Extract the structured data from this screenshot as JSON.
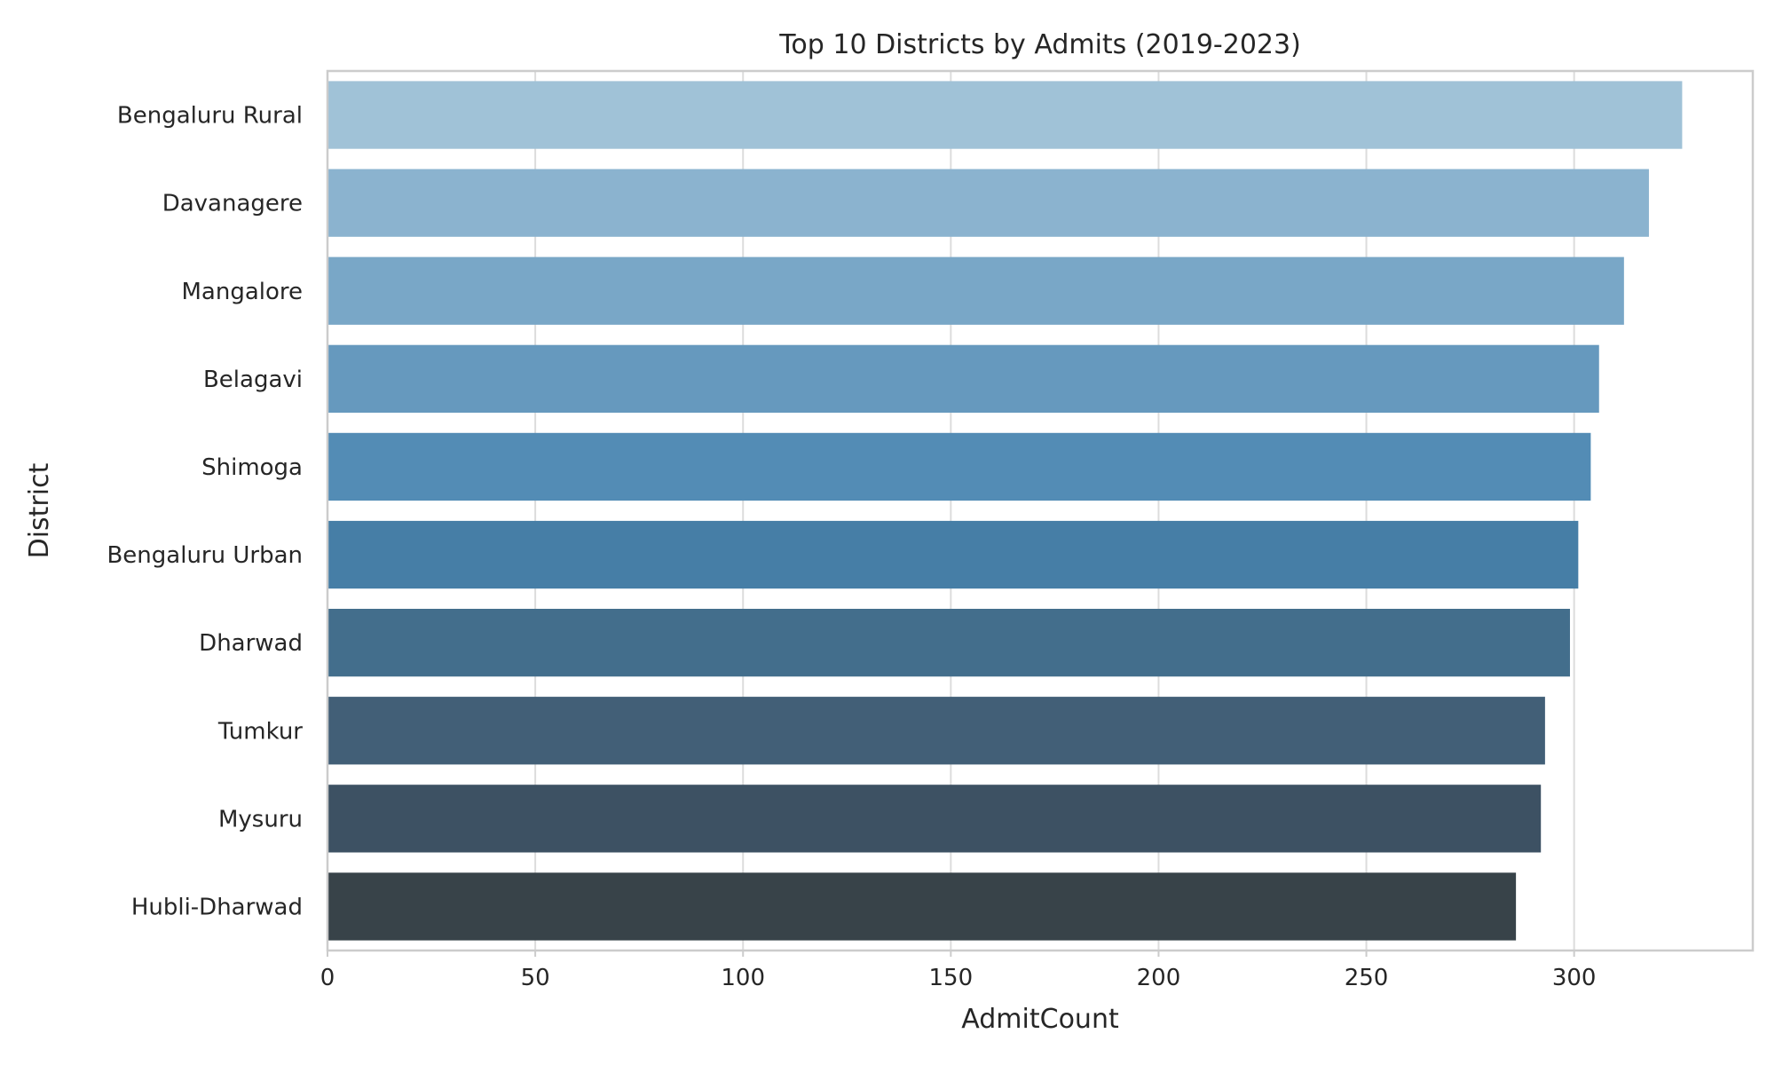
{
  "chart_data": {
    "type": "bar",
    "orientation": "horizontal",
    "title": "Top 10 Districts by Admits (2019-2023)",
    "xlabel": "AdmitCount",
    "ylabel": "District",
    "categories": [
      "Bengaluru Rural",
      "Davanagere",
      "Mangalore",
      "Belagavi",
      "Shimoga",
      "Bengaluru Urban",
      "Dharwad",
      "Tumkur",
      "Mysuru",
      "Hubli-Dharwad"
    ],
    "values": [
      326,
      318,
      312,
      306,
      304,
      301,
      299,
      293,
      292,
      286
    ],
    "xlim": [
      0,
      343
    ],
    "xticks": [
      0,
      50,
      100,
      150,
      200,
      250,
      300
    ],
    "xtick_labels": [
      "0",
      "50",
      "100",
      "150",
      "200",
      "250",
      "300"
    ],
    "grid": "vertical",
    "legend": "none",
    "colors": [
      "#a0c2d7",
      "#8bb3cf",
      "#79a7c7",
      "#6699be",
      "#538cb5",
      "#467ea6",
      "#436e8c",
      "#425f77",
      "#3d5163",
      "#384349"
    ]
  }
}
